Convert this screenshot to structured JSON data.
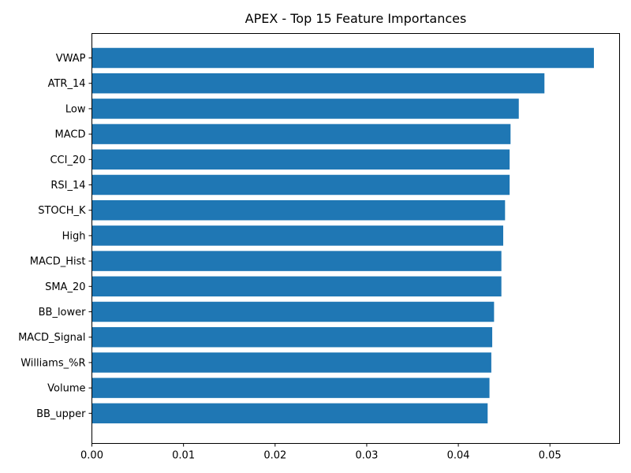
{
  "chart_data": {
    "type": "bar",
    "orientation": "horizontal",
    "title": "APEX - Top 15 Feature Importances",
    "xlabel": "",
    "ylabel": "",
    "bar_color": "#1f77b4",
    "xlim": [
      0,
      0.0576
    ],
    "x_ticks": [
      "0.00",
      "0.01",
      "0.02",
      "0.03",
      "0.04",
      "0.05"
    ],
    "categories": [
      "VWAP",
      "ATR_14",
      "Low",
      "MACD",
      "CCI_20",
      "RSI_14",
      "STOCH_K",
      "High",
      "MACD_Hist",
      "SMA_20",
      "BB_lower",
      "MACD_Signal",
      "Williams_%R",
      "Volume",
      "BB_upper"
    ],
    "values": [
      0.0548,
      0.0494,
      0.0466,
      0.0457,
      0.0456,
      0.0456,
      0.0451,
      0.0449,
      0.0447,
      0.0447,
      0.0439,
      0.0437,
      0.0436,
      0.0434,
      0.0432
    ],
    "grid": false,
    "legend": "none"
  }
}
